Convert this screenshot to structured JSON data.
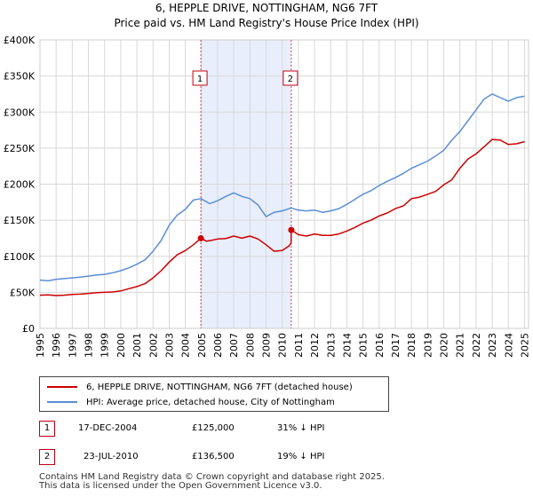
{
  "chart_data": {
    "type": "line",
    "title": "6, HEPPLE DRIVE, NOTTINGHAM, NG6 7FT",
    "subtitle": "Price paid vs. HM Land Registry's House Price Index (HPI)",
    "xlim": [
      1995,
      2025.25
    ],
    "ylim": [
      0,
      400000
    ],
    "y_ticks": [
      {
        "value": 0,
        "label": "£0"
      },
      {
        "value": 50000,
        "label": "£50K"
      },
      {
        "value": 100000,
        "label": "£100K"
      },
      {
        "value": 150000,
        "label": "£150K"
      },
      {
        "value": 200000,
        "label": "£200K"
      },
      {
        "value": 250000,
        "label": "£250K"
      },
      {
        "value": 300000,
        "label": "£300K"
      },
      {
        "value": 350000,
        "label": "£350K"
      },
      {
        "value": 400000,
        "label": "£400K"
      }
    ],
    "x_ticks": [
      "1995",
      "1996",
      "1997",
      "1998",
      "1999",
      "2000",
      "2001",
      "2002",
      "2003",
      "2004",
      "2005",
      "2006",
      "2007",
      "2008",
      "2009",
      "2010",
      "2011",
      "2012",
      "2013",
      "2014",
      "2015",
      "2016",
      "2017",
      "2018",
      "2019",
      "2020",
      "2021",
      "2022",
      "2023",
      "2024",
      "2025"
    ],
    "shaded_span": [
      2004.96,
      2010.56
    ],
    "series": [
      {
        "name": "6, HEPPLE DRIVE, NOTTINGHAM, NG6 7FT (detached house)",
        "color": "#cc0000",
        "x": [
          1995,
          1995.5,
          1996,
          1996.5,
          1997,
          1997.5,
          1998,
          1998.5,
          1999,
          1999.5,
          2000,
          2000.5,
          2001,
          2001.5,
          2002,
          2002.5,
          2003,
          2003.5,
          2004,
          2004.5,
          2004.96,
          2005.3,
          2005.6,
          2006,
          2006.5,
          2007,
          2007.5,
          2008,
          2008.5,
          2009,
          2009.5,
          2010,
          2010.4,
          2010.55,
          2010.56,
          2011,
          2011.5,
          2012,
          2012.5,
          2013,
          2013.5,
          2014,
          2014.5,
          2015,
          2015.5,
          2016,
          2016.5,
          2017,
          2017.5,
          2018,
          2018.5,
          2019,
          2019.5,
          2020,
          2020.5,
          2021,
          2021.5,
          2022,
          2022.5,
          2023,
          2023.5,
          2024,
          2024.5,
          2025
        ],
        "y": [
          46000,
          46500,
          45500,
          46000,
          47000,
          47500,
          48500,
          49500,
          50000,
          50500,
          52000,
          55000,
          58000,
          62000,
          70000,
          80000,
          92000,
          102000,
          108000,
          116000,
          125000,
          121000,
          122000,
          124000,
          124500,
          128000,
          125000,
          128000,
          124000,
          116000,
          107000,
          108000,
          114000,
          118000,
          136500,
          130000,
          128000,
          131000,
          129000,
          129000,
          131000,
          135000,
          140000,
          146000,
          150000,
          156000,
          160000,
          166000,
          170000,
          180000,
          182000,
          186000,
          190000,
          199000,
          206000,
          222000,
          235000,
          242000,
          252000,
          262000,
          261000,
          255000,
          256000,
          259000
        ]
      },
      {
        "name": "HPI: Average price, detached house, City of Nottingham",
        "color": "#5b8ed6",
        "x": [
          1995,
          1995.5,
          1996,
          1996.5,
          1997,
          1997.5,
          1998,
          1998.5,
          1999,
          1999.5,
          2000,
          2000.5,
          2001,
          2001.5,
          2002,
          2002.5,
          2003,
          2003.5,
          2004,
          2004.5,
          2004.96,
          2005.5,
          2006,
          2006.5,
          2007,
          2007.5,
          2008,
          2008.5,
          2009,
          2009.5,
          2010,
          2010.56,
          2011,
          2011.5,
          2012,
          2012.5,
          2013,
          2013.5,
          2014,
          2014.5,
          2015,
          2015.5,
          2016,
          2016.5,
          2017,
          2017.5,
          2018,
          2018.5,
          2019,
          2019.5,
          2020,
          2020.5,
          2021,
          2021.5,
          2022,
          2022.5,
          2023,
          2023.5,
          2024,
          2024.5,
          2025
        ],
        "y": [
          67000,
          66000,
          68000,
          69000,
          70000,
          71000,
          72500,
          74000,
          75000,
          77000,
          80000,
          84000,
          89000,
          95000,
          107000,
          122000,
          143000,
          157000,
          165000,
          178000,
          180000,
          173000,
          177000,
          183000,
          188000,
          183000,
          180000,
          171000,
          155000,
          161000,
          163000,
          167000,
          164000,
          163000,
          164000,
          161000,
          163000,
          166000,
          172000,
          179000,
          186000,
          191000,
          198000,
          204000,
          209000,
          215000,
          222000,
          227000,
          232000,
          239000,
          247000,
          261000,
          273000,
          288000,
          303000,
          318000,
          325000,
          320000,
          315000,
          320000,
          322000
        ]
      }
    ],
    "annotations": [
      {
        "label": "1",
        "x": 2004.96,
        "y": 125000
      },
      {
        "label": "2",
        "x": 2010.56,
        "y": 136500
      }
    ]
  },
  "legend": {
    "items": [
      {
        "label": "6, HEPPLE DRIVE, NOTTINGHAM, NG6 7FT (detached house)",
        "color": "#cc0000"
      },
      {
        "label": "HPI: Average price, detached house, City of Nottingham",
        "color": "#5b8ed6"
      }
    ]
  },
  "sales": [
    {
      "num": "1",
      "date": "17-DEC-2004",
      "price": "£125,000",
      "hpi": "31% ↓ HPI"
    },
    {
      "num": "2",
      "date": "23-JUL-2010",
      "price": "£136,500",
      "hpi": "19% ↓ HPI"
    }
  ],
  "footer": {
    "line1": "Contains HM Land Registry data © Crown copyright and database right 2025.",
    "line2": "This data is licensed under the Open Government Licence v3.0."
  }
}
